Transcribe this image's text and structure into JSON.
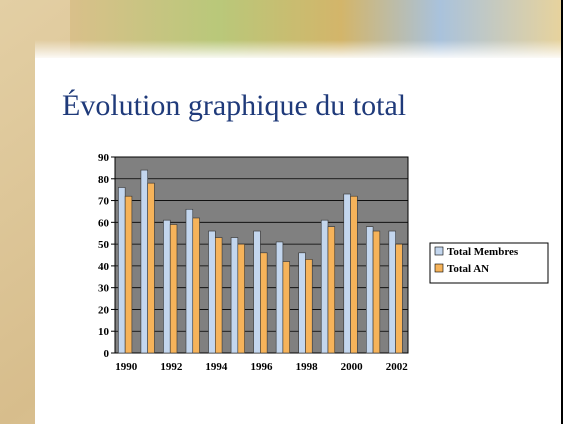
{
  "chart_data": {
    "type": "bar",
    "title": "Évolution graphique du total",
    "categories": [
      "1990",
      null,
      "1992",
      null,
      "1994",
      null,
      "1996",
      null,
      "1998",
      null,
      "2000",
      null,
      "2002"
    ],
    "series": [
      {
        "name": "Total Membres",
        "color": "#c3d6ee",
        "values": [
          76,
          84,
          61,
          66,
          56,
          53,
          56,
          51,
          46,
          61,
          73,
          58,
          56
        ]
      },
      {
        "name": "Total AN",
        "color": "#f6b35a",
        "values": [
          72,
          78,
          59,
          62,
          53,
          50,
          46,
          42,
          43,
          58,
          72,
          56,
          50
        ]
      }
    ],
    "ylim": [
      0,
      90
    ],
    "yticks": [
      0,
      10,
      20,
      30,
      40,
      50,
      60,
      70,
      80,
      90
    ],
    "grid": true,
    "legend": "right"
  }
}
